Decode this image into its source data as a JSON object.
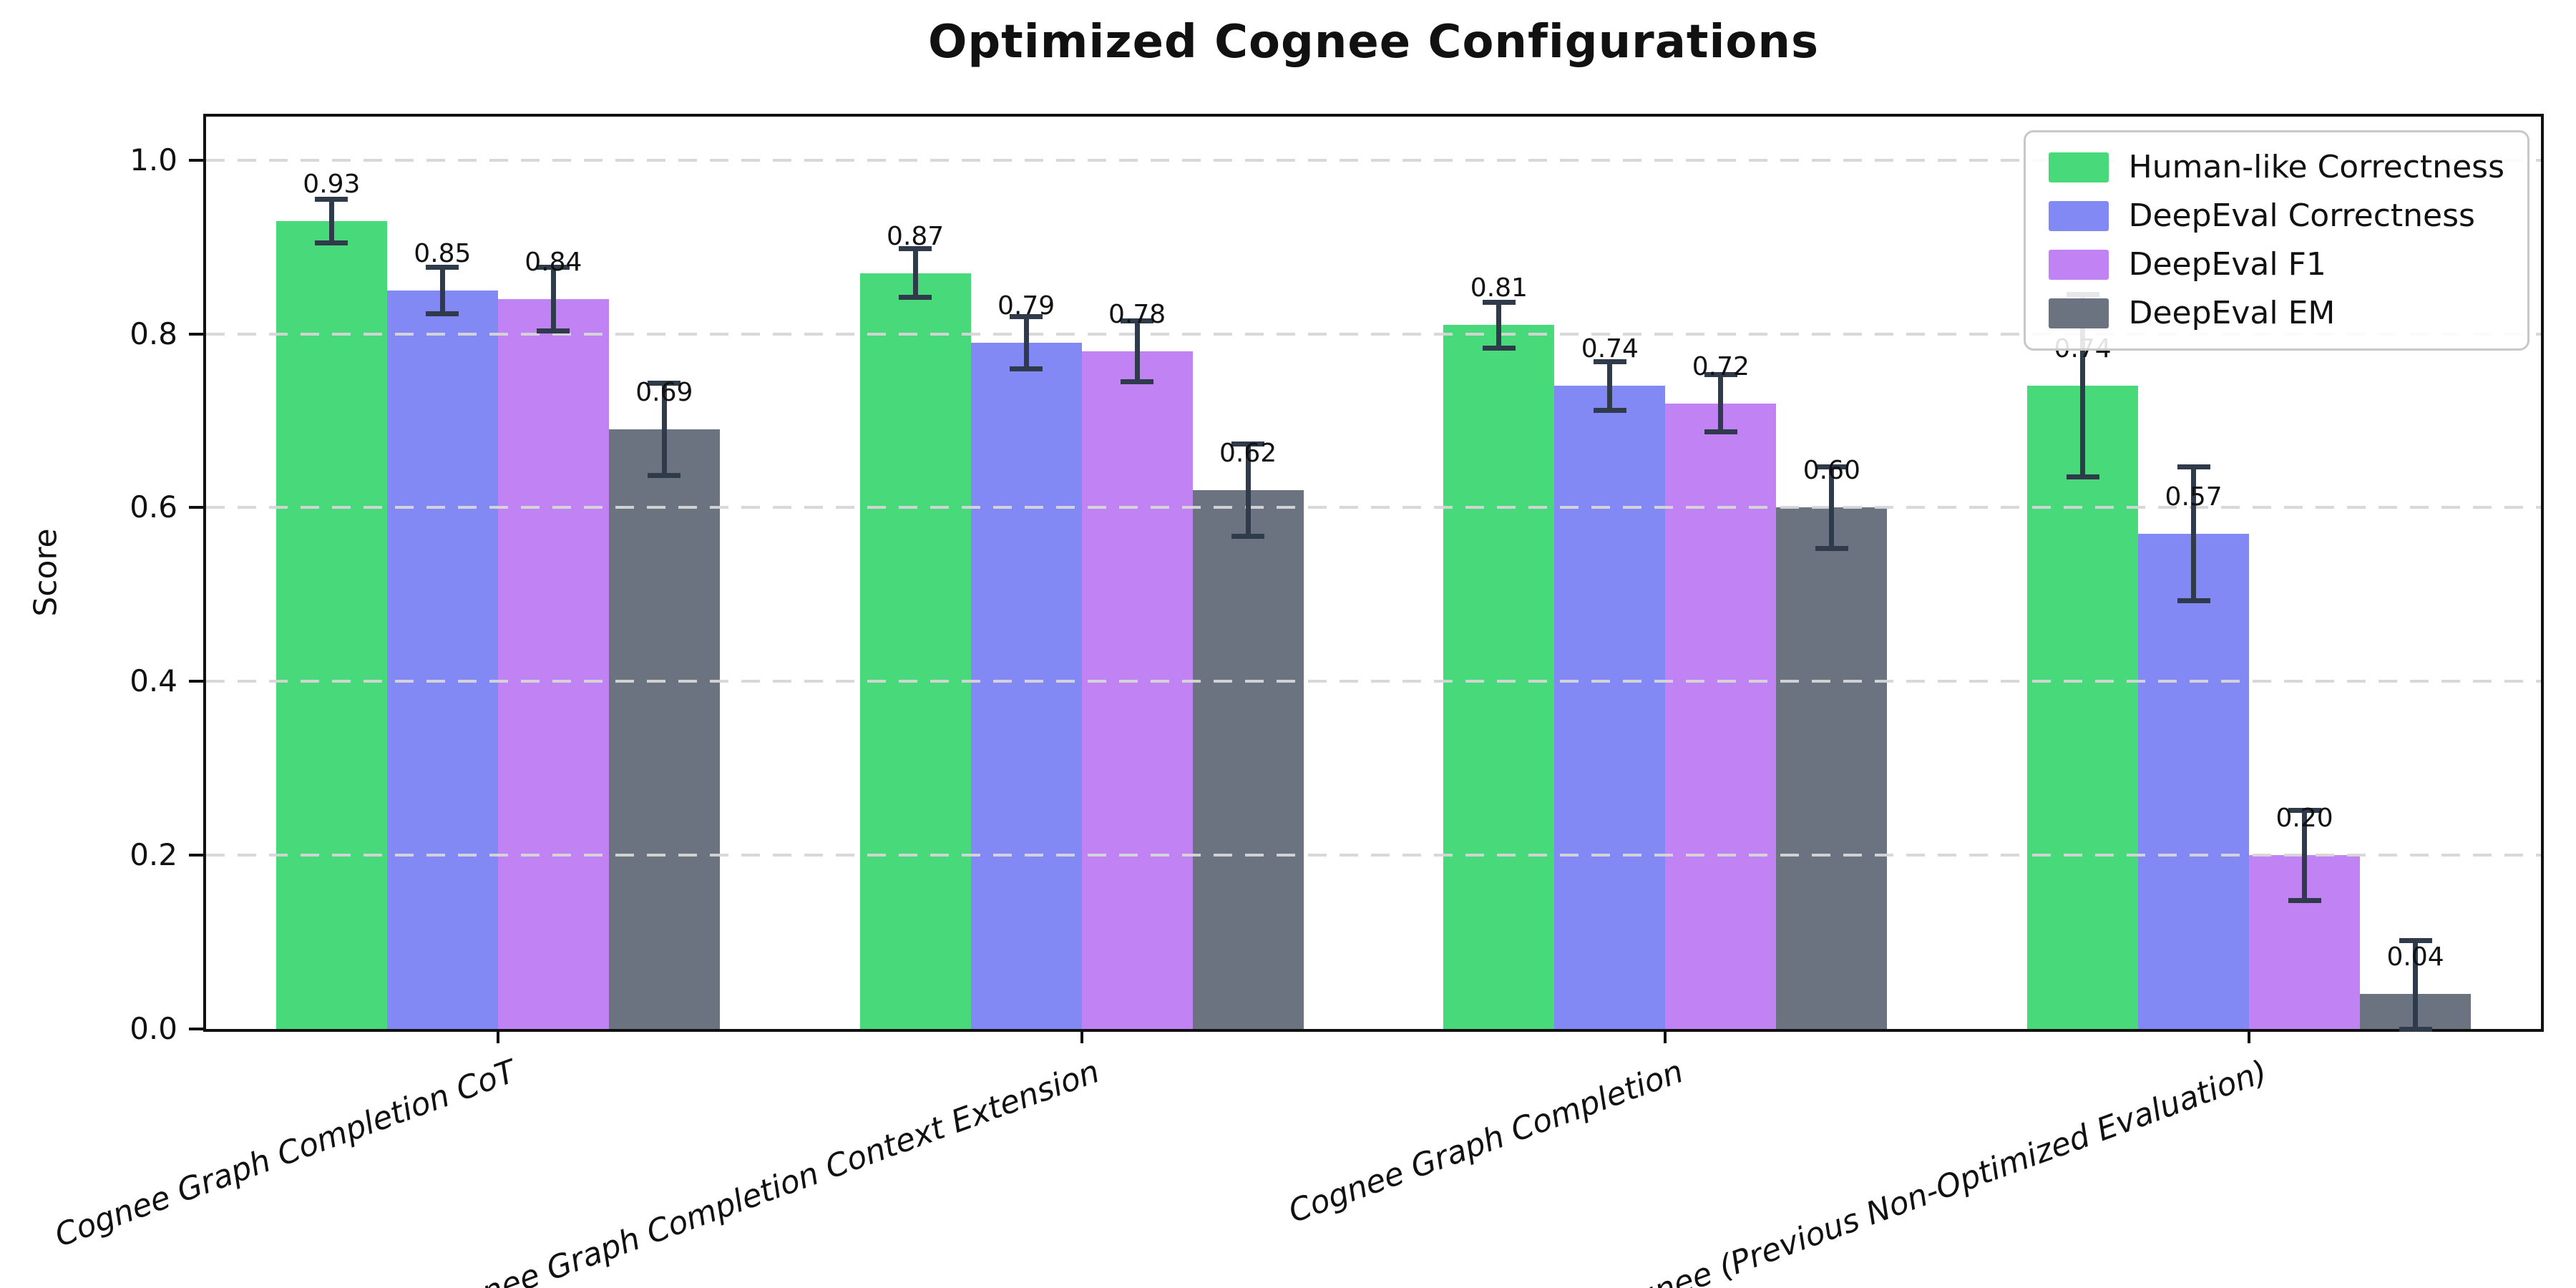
{
  "title": "Optimized Cognee Configurations",
  "chart_data": {
    "type": "bar",
    "title": "Optimized Cognee Configurations",
    "xlabel": "",
    "ylabel": "Score",
    "ylim": [
      0,
      1.05
    ],
    "yticks": [
      "0.0",
      "0.2",
      "0.4",
      "0.6",
      "0.8",
      "1.0"
    ],
    "grid": "horizontal dashed, light gray, drawn over bars",
    "legend_position": "upper right",
    "bar_value_label_format": "two decimals above each bar",
    "error_bar_color": "#2f3a4a",
    "axis_color": "#111111",
    "categories": [
      "Cognee Graph Completion CoT",
      "Cognee Graph Completion Context Extension",
      "Cognee Graph Completion",
      "Cognee (Previous Non-Optimized Evaluation)"
    ],
    "series": [
      {
        "name": "Human-like Correctness",
        "color": "#48d97b",
        "values": [
          0.93,
          0.87,
          0.81,
          0.74
        ],
        "errors": [
          0.025,
          0.028,
          0.026,
          0.105
        ]
      },
      {
        "name": "DeepEval Correctness",
        "color": "#8289f5",
        "values": [
          0.85,
          0.79,
          0.74,
          0.57
        ],
        "errors": [
          0.027,
          0.03,
          0.028,
          0.077
        ]
      },
      {
        "name": "DeepEval F1",
        "color": "#c183f3",
        "values": [
          0.84,
          0.78,
          0.72,
          0.2
        ],
        "errors": [
          0.037,
          0.035,
          0.033,
          0.052
        ]
      },
      {
        "name": "DeepEval EM",
        "color": "#6b7280",
        "values": [
          0.69,
          0.62,
          0.6,
          0.04
        ],
        "errors": [
          0.053,
          0.053,
          0.047,
          0.062
        ]
      }
    ]
  }
}
